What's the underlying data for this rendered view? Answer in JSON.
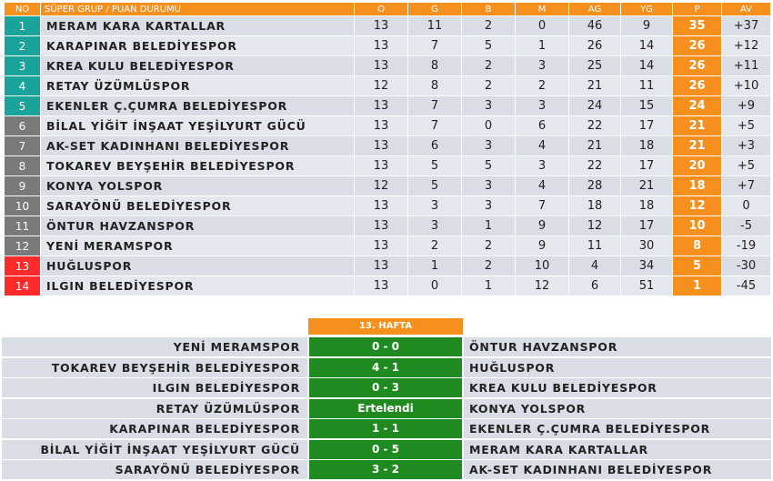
{
  "standings": {
    "headers": [
      "NO",
      "SÜPER GRUP / PUAN DURUMU",
      "O",
      "G",
      "B",
      "M",
      "AG",
      "YG",
      "P",
      "AV"
    ],
    "colors": {
      "top": "#1aa39a",
      "mid": "#7a7a7a",
      "bottom": "#ff2a2a",
      "points": "#f5901e"
    },
    "rows": [
      {
        "no": "1",
        "team": "MERAM KARA KARTALLAR",
        "o": "13",
        "g": "11",
        "b": "2",
        "m": "0",
        "ag": "46",
        "yg": "9",
        "p": "35",
        "av": "+37",
        "zone": "top"
      },
      {
        "no": "2",
        "team": "KARAPINAR BELEDİYESPOR",
        "o": "13",
        "g": "7",
        "b": "5",
        "m": "1",
        "ag": "26",
        "yg": "14",
        "p": "26",
        "av": "+12",
        "zone": "top"
      },
      {
        "no": "3",
        "team": "KREA KULU BELEDİYESPOR",
        "o": "13",
        "g": "8",
        "b": "2",
        "m": "3",
        "ag": "25",
        "yg": "14",
        "p": "26",
        "av": "+11",
        "zone": "top"
      },
      {
        "no": "4",
        "team": "RETAY ÜZÜMLÜSPOR",
        "o": "12",
        "g": "8",
        "b": "2",
        "m": "2",
        "ag": "21",
        "yg": "11",
        "p": "26",
        "av": "+10",
        "zone": "top"
      },
      {
        "no": "5",
        "team": "EKENLER Ç.ÇUMRA BELEDİYESPOR",
        "o": "13",
        "g": "7",
        "b": "3",
        "m": "3",
        "ag": "24",
        "yg": "15",
        "p": "24",
        "av": "+9",
        "zone": "top"
      },
      {
        "no": "6",
        "team": "BİLAL YİĞİT İNŞAAT YEŞİLYURT GÜCÜ",
        "o": "13",
        "g": "7",
        "b": "0",
        "m": "6",
        "ag": "22",
        "yg": "17",
        "p": "21",
        "av": "+5",
        "zone": "mid"
      },
      {
        "no": "7",
        "team": "AK-SET KADINHANI BELEDİYESPOR",
        "o": "13",
        "g": "6",
        "b": "3",
        "m": "4",
        "ag": "21",
        "yg": "18",
        "p": "21",
        "av": "+3",
        "zone": "mid"
      },
      {
        "no": "8",
        "team": "TOKAREV BEYŞEHİR BELEDİYESPOR",
        "o": "13",
        "g": "5",
        "b": "5",
        "m": "3",
        "ag": "22",
        "yg": "17",
        "p": "20",
        "av": "+5",
        "zone": "mid"
      },
      {
        "no": "9",
        "team": "KONYA YOLSPOR",
        "o": "12",
        "g": "5",
        "b": "3",
        "m": "4",
        "ag": "28",
        "yg": "21",
        "p": "18",
        "av": "+7",
        "zone": "mid"
      },
      {
        "no": "10",
        "team": "SARAYÖNÜ BELEDİYESPOR",
        "o": "13",
        "g": "3",
        "b": "3",
        "m": "7",
        "ag": "18",
        "yg": "18",
        "p": "12",
        "av": "0",
        "zone": "mid"
      },
      {
        "no": "11",
        "team": "ÖNTUR HAVZANSPOR",
        "o": "13",
        "g": "3",
        "b": "1",
        "m": "9",
        "ag": "12",
        "yg": "17",
        "p": "10",
        "av": "-5",
        "zone": "mid"
      },
      {
        "no": "12",
        "team": "YENİ MERAMSPOR",
        "o": "13",
        "g": "2",
        "b": "2",
        "m": "9",
        "ag": "11",
        "yg": "30",
        "p": "8",
        "av": "-19",
        "zone": "mid"
      },
      {
        "no": "13",
        "team": "HUĞLUSPOR",
        "o": "13",
        "g": "1",
        "b": "2",
        "m": "10",
        "ag": "4",
        "yg": "34",
        "p": "5",
        "av": "-30",
        "zone": "bottom"
      },
      {
        "no": "14",
        "team": "ILGIN BELEDİYESPOR",
        "o": "13",
        "g": "0",
        "b": "1",
        "m": "12",
        "ag": "6",
        "yg": "51",
        "p": "1",
        "av": "-45",
        "zone": "bottom"
      }
    ]
  },
  "fixtures": {
    "week_label": "13. HAFTA",
    "matches": [
      {
        "home": "YENİ MERAMSPOR",
        "score": "0 - 0",
        "away": "ÖNTUR HAVZANSPOR"
      },
      {
        "home": "TOKAREV BEYŞEHİR BELEDİYESPOR",
        "score": "4 - 1",
        "away": "HUĞLUSPOR"
      },
      {
        "home": "ILGIN BELEDİYESPOR",
        "score": "0 - 3",
        "away": "KREA KULU BELEDİYESPOR"
      },
      {
        "home": "RETAY ÜZÜMLÜSPOR",
        "score": "Ertelendi",
        "away": "KONYA YOLSPOR"
      },
      {
        "home": "KARAPINAR BELEDİYESPOR",
        "score": "1 - 1",
        "away": "EKENLER Ç.ÇUMRA BELEDİYESPOR"
      },
      {
        "home": "BİLAL YİĞİT İNŞAAT YEŞİLYURT GÜCÜ",
        "score": "0 - 5",
        "away": "MERAM KARA KARTALLAR"
      },
      {
        "home": "SARAYÖNÜ BELEDİYESPOR",
        "score": "3 - 2",
        "away": "AK-SET KADINHANI BELEDİYESPOR"
      }
    ]
  }
}
